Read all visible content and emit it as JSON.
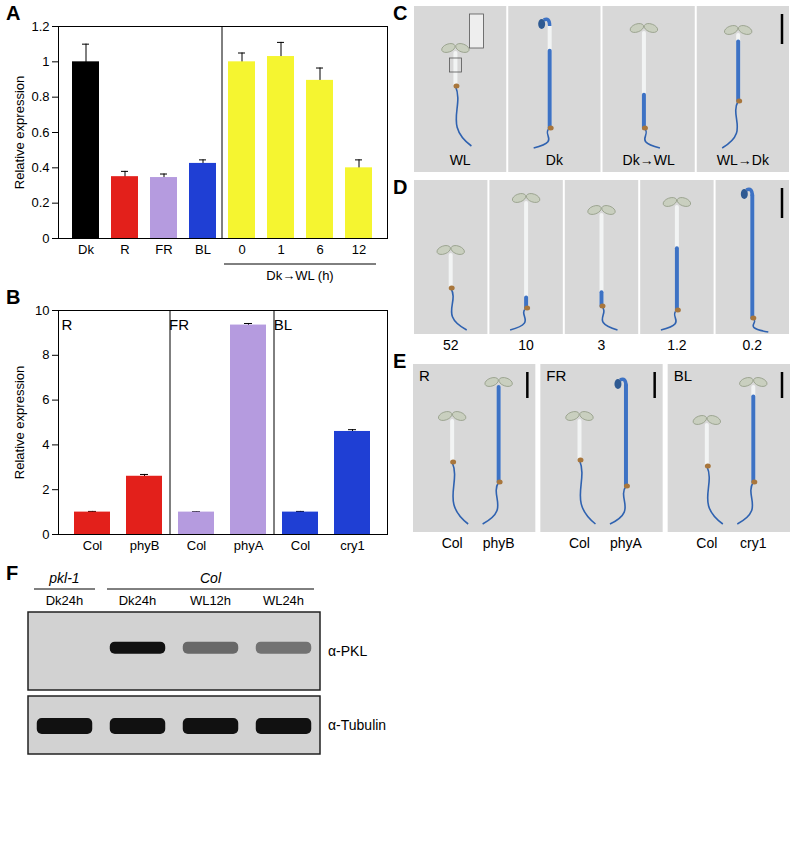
{
  "chart_data": [
    {
      "type": "bar",
      "title": "A",
      "y_label": "Relative expression",
      "categories": [
        "Dk",
        "R",
        "FR",
        "BL",
        "0",
        "1",
        "6",
        "12"
      ],
      "values": [
        1.0,
        0.35,
        0.345,
        0.425,
        1.0,
        1.03,
        0.895,
        0.4
      ],
      "errors": [
        0.1,
        0.03,
        0.02,
        0.02,
        0.05,
        0.08,
        0.07,
        0.045
      ],
      "colors": [
        "#000000",
        "#e3201b",
        "#b59bdf",
        "#1f3fd4",
        "#f5f530",
        "#f5f530",
        "#f5f530",
        "#f5f530"
      ],
      "groups": [
        {
          "label": "Dk→WL (h)",
          "categories": [
            "0",
            "1",
            "6",
            "12"
          ]
        }
      ],
      "ylim": [
        0,
        1.2
      ],
      "yticks": [
        0,
        0.2,
        0.4,
        0.6,
        0.8,
        1,
        1.2
      ]
    },
    {
      "type": "bar",
      "title": "B",
      "y_label": "Relative expression",
      "categories": [
        "Col",
        "phyB",
        "Col",
        "phyA",
        "Col",
        "cry1"
      ],
      "values": [
        1,
        2.6,
        1,
        9.35,
        1,
        4.6
      ],
      "errors": [
        0.03,
        0.08,
        0.02,
        0.07,
        0.03,
        0.08
      ],
      "colors": [
        "#e3201b",
        "#e3201b",
        "#b59bdf",
        "#b59bdf",
        "#1f3fd4",
        "#1f3fd4"
      ],
      "groups": [
        {
          "label": "R",
          "categories": [
            "Col",
            "phyB"
          ]
        },
        {
          "label": "FR",
          "categories": [
            "Col",
            "phyA"
          ]
        },
        {
          "label": "BL",
          "categories": [
            "Col",
            "cry1"
          ]
        }
      ],
      "ylim": [
        0,
        10
      ],
      "yticks": [
        0,
        2,
        4,
        6,
        8,
        10
      ]
    }
  ],
  "photo_panels": [
    {
      "label": "C",
      "images": [
        "WL",
        "Dk",
        "Dk→WL",
        "WL→Dk"
      ]
    },
    {
      "label": "D",
      "images": [
        52,
        10,
        3,
        1.2,
        0.2
      ]
    },
    {
      "label": "E",
      "groups": [
        {
          "label": "R",
          "images": [
            "Col",
            "phyB"
          ]
        },
        {
          "label": "FR",
          "images": [
            "Col",
            "phyA"
          ]
        },
        {
          "label": "BL",
          "images": [
            "Col",
            "cry1"
          ]
        }
      ]
    }
  ],
  "blot": {
    "label": "F",
    "groups": [
      {
        "label": "pkl-1",
        "lanes": [
          "Dk24h"
        ]
      },
      {
        "label": "Col",
        "lanes": [
          "Dk24h",
          "WL12h",
          "WL24h"
        ]
      }
    ],
    "rows": [
      "α-PKL",
      "α-Tubulin"
    ]
  }
}
